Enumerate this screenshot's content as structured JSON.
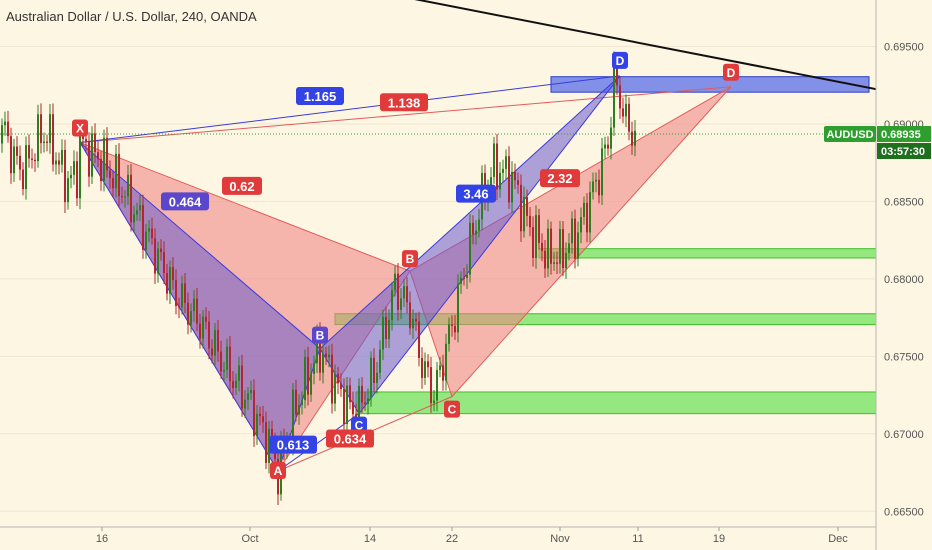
{
  "header": {
    "title": "Australian Dollar / U.S. Dollar, 240, OANDA"
  },
  "colors": {
    "background": "#fdf6e3",
    "candle_up": "#2e7d1e",
    "candle_down": "#b3262f",
    "bear_pattern": "#6a5acd",
    "bull_pattern": "#f08080",
    "zone_blue": "#5a6ee8",
    "zone_green": "#5ee04a",
    "price_tag": "#2e9e2e",
    "trendline": "#111111"
  },
  "chart_data": {
    "type": "candlestick",
    "symbol": "AUDUSD",
    "last_price": "0.68935",
    "countdown": "03:57:30",
    "ylim": [
      0.6625,
      0.698
    ],
    "y_ticks": [
      "0.69500",
      "0.69000",
      "0.68500",
      "0.68000",
      "0.67500",
      "0.67000",
      "0.66500"
    ],
    "x_ticks": [
      "16",
      "Oct",
      "14",
      "22",
      "Nov",
      "11",
      "19",
      "Dec"
    ],
    "anchor_points": [
      {
        "t": 0,
        "p": 0.6888
      },
      {
        "t": 8,
        "p": 0.6875
      },
      {
        "t": 16,
        "p": 0.6852
      },
      {
        "t": 24,
        "p": 0.6822
      },
      {
        "t": 32,
        "p": 0.679
      },
      {
        "t": 40,
        "p": 0.6772
      },
      {
        "t": 48,
        "p": 0.6745
      },
      {
        "t": 56,
        "p": 0.6722
      },
      {
        "t": 64,
        "p": 0.669
      },
      {
        "t": 66,
        "p": 0.6676
      },
      {
        "t": 72,
        "p": 0.6718
      },
      {
        "t": 80,
        "p": 0.6755
      },
      {
        "t": 86,
        "p": 0.6728
      },
      {
        "t": 92,
        "p": 0.6712
      },
      {
        "t": 98,
        "p": 0.6738
      },
      {
        "t": 105,
        "p": 0.6795
      },
      {
        "t": 110,
        "p": 0.678
      },
      {
        "t": 114,
        "p": 0.6745
      },
      {
        "t": 118,
        "p": 0.6725
      },
      {
        "t": 124,
        "p": 0.677
      },
      {
        "t": 130,
        "p": 0.6822
      },
      {
        "t": 134,
        "p": 0.6852
      },
      {
        "t": 138,
        "p": 0.6872
      },
      {
        "t": 144,
        "p": 0.6865
      },
      {
        "t": 150,
        "p": 0.6832
      },
      {
        "t": 156,
        "p": 0.6815
      },
      {
        "t": 160,
        "p": 0.6815
      },
      {
        "t": 166,
        "p": 0.683
      },
      {
        "t": 172,
        "p": 0.6862
      },
      {
        "t": 176,
        "p": 0.6888
      },
      {
        "t": 178,
        "p": 0.6928
      },
      {
        "t": 180,
        "p": 0.6918
      },
      {
        "t": 182,
        "p": 0.69
      },
      {
        "t": 185,
        "p": 0.6893
      }
    ],
    "bearish_pattern": {
      "points": [
        {
          "label": "X",
          "t": 0,
          "p": 0.6888
        },
        {
          "label": "A",
          "t": 66,
          "p": 0.6676
        },
        {
          "label": "B",
          "t": 80,
          "p": 0.6755
        },
        {
          "label": "C",
          "t": 93,
          "p": 0.6713
        },
        {
          "label": "D",
          "t": 180,
          "p": 0.6931
        }
      ],
      "ratios": [
        {
          "text": "0.464",
          "t": 35,
          "p": 0.685
        },
        {
          "text": "0.613",
          "t": 71,
          "p": 0.6693
        },
        {
          "text": "3.46",
          "t": 132,
          "p": 0.6855
        },
        {
          "text": "1.165",
          "t": 80,
          "p": 0.6918
        }
      ]
    },
    "bullish_pattern": {
      "points": [
        {
          "label": "X",
          "t": 0,
          "p": 0.6888
        },
        {
          "label": "A",
          "t": 66,
          "p": 0.6676
        },
        {
          "label": "B",
          "t": 110,
          "p": 0.6805
        },
        {
          "label": "C",
          "t": 124,
          "p": 0.6724
        },
        {
          "label": "D",
          "t": 217,
          "p": 0.6924
        }
      ],
      "ratios": [
        {
          "text": "0.62",
          "t": 54,
          "p": 0.686
        },
        {
          "text": "0.634",
          "t": 90,
          "p": 0.6697
        },
        {
          "text": "2.32",
          "t": 160,
          "p": 0.6865
        },
        {
          "text": "1.138",
          "t": 108,
          "p": 0.6914
        }
      ]
    },
    "zones": [
      {
        "color": "blue",
        "t0": 157,
        "t1": 263,
        "p0": 0.69205,
        "p1": 0.69305
      },
      {
        "color": "green",
        "t0": 153,
        "t1": 281,
        "p0": 0.68135,
        "p1": 0.68195
      },
      {
        "color": "green",
        "t0": 85,
        "t1": 284,
        "p0": 0.67705,
        "p1": 0.67775
      },
      {
        "color": "green",
        "t0": 92,
        "t1": 286,
        "p0": 0.6713,
        "p1": 0.6727
      }
    ],
    "trendline": {
      "t0": 92,
      "p0": 0.6988,
      "t1": 293,
      "p1": 0.6912
    }
  }
}
